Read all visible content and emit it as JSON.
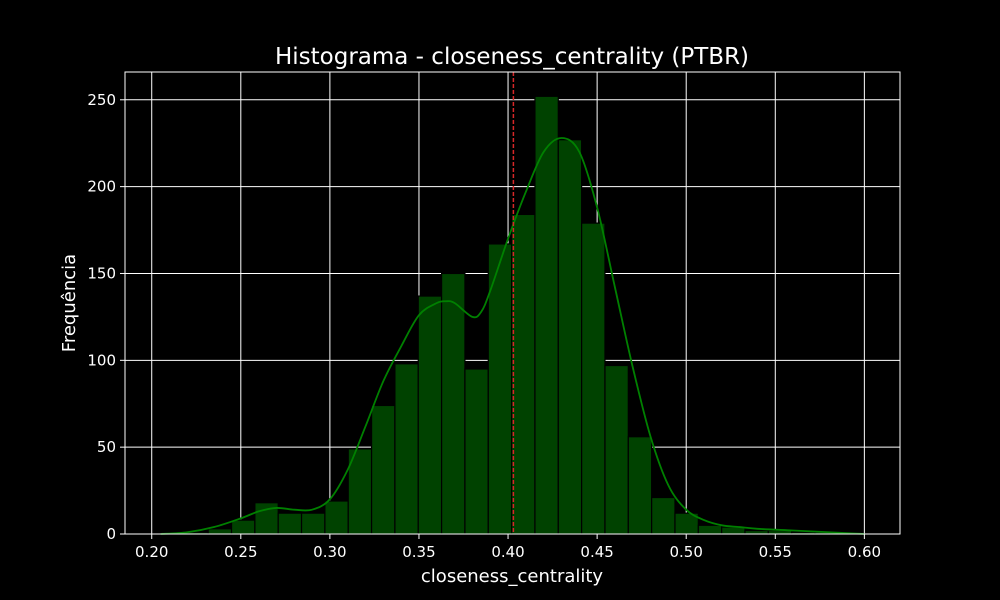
{
  "chart_data": {
    "type": "bar",
    "title": "Histograma - closeness_centrality (PTBR)",
    "xlabel": "closeness_centrality",
    "ylabel": "Frequência",
    "xlim": [
      0.185,
      0.62
    ],
    "ylim": [
      0,
      266
    ],
    "x_ticks": [
      0.2,
      0.25,
      0.3,
      0.35,
      0.4,
      0.45,
      0.5,
      0.55,
      0.6
    ],
    "x_tick_labels": [
      "0.20",
      "0.25",
      "0.30",
      "0.35",
      "0.40",
      "0.45",
      "0.50",
      "0.55",
      "0.60"
    ],
    "y_ticks": [
      0,
      50,
      100,
      150,
      200,
      250
    ],
    "y_tick_labels": [
      "0",
      "50",
      "100",
      "150",
      "200",
      "250"
    ],
    "grid": true,
    "bin_width": 0.0131,
    "bins": [
      {
        "x": 0.2055,
        "value": 1
      },
      {
        "x": 0.2186,
        "value": 1
      },
      {
        "x": 0.2317,
        "value": 3
      },
      {
        "x": 0.2448,
        "value": 8
      },
      {
        "x": 0.2579,
        "value": 18
      },
      {
        "x": 0.271,
        "value": 12
      },
      {
        "x": 0.2841,
        "value": 12
      },
      {
        "x": 0.2972,
        "value": 19
      },
      {
        "x": 0.3103,
        "value": 49
      },
      {
        "x": 0.3234,
        "value": 74
      },
      {
        "x": 0.3365,
        "value": 98
      },
      {
        "x": 0.3496,
        "value": 137
      },
      {
        "x": 0.3627,
        "value": 150
      },
      {
        "x": 0.3758,
        "value": 95
      },
      {
        "x": 0.3889,
        "value": 167
      },
      {
        "x": 0.402,
        "value": 184
      },
      {
        "x": 0.4151,
        "value": 252
      },
      {
        "x": 0.4282,
        "value": 227
      },
      {
        "x": 0.4413,
        "value": 179
      },
      {
        "x": 0.4544,
        "value": 97
      },
      {
        "x": 0.4675,
        "value": 56
      },
      {
        "x": 0.4806,
        "value": 21
      },
      {
        "x": 0.4937,
        "value": 12
      },
      {
        "x": 0.5068,
        "value": 5
      },
      {
        "x": 0.5199,
        "value": 4
      },
      {
        "x": 0.533,
        "value": 2
      },
      {
        "x": 0.5461,
        "value": 2
      },
      {
        "x": 0.5592,
        "value": 1
      },
      {
        "x": 0.5723,
        "value": 1
      },
      {
        "x": 0.5854,
        "value": 1
      }
    ],
    "kde": {
      "x": [
        0.205,
        0.22,
        0.235,
        0.25,
        0.26,
        0.27,
        0.28,
        0.29,
        0.3,
        0.31,
        0.32,
        0.33,
        0.34,
        0.35,
        0.36,
        0.365,
        0.37,
        0.38,
        0.385,
        0.39,
        0.4,
        0.41,
        0.42,
        0.43,
        0.44,
        0.45,
        0.46,
        0.47,
        0.48,
        0.49,
        0.5,
        0.51,
        0.52,
        0.53,
        0.54,
        0.56,
        0.58,
        0.6
      ],
      "y": [
        0,
        1,
        4,
        9,
        13,
        15,
        14,
        14,
        20,
        37,
        62,
        88,
        108,
        126,
        133,
        134,
        133,
        125,
        128,
        140,
        170,
        197,
        220,
        228,
        220,
        188,
        142,
        96,
        56,
        28,
        14,
        8,
        5,
        4,
        3,
        2,
        1,
        0
      ]
    },
    "mean_line": {
      "x": 0.403
    },
    "colors": {
      "bar_fill": "#004200",
      "bar_edge": "#000000",
      "kde_line": "#008000",
      "mean_line": "#d62728",
      "grid": "#ffffff",
      "axes": "#ffffff",
      "text": "#ffffff",
      "background": "#000000"
    }
  }
}
